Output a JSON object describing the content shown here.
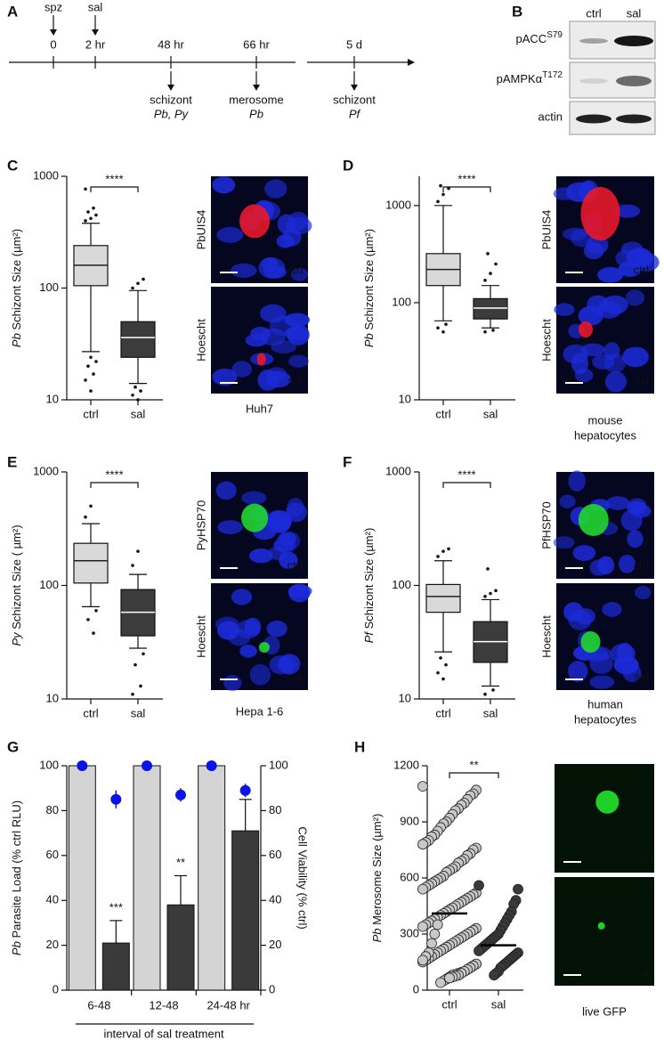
{
  "timeline": {
    "panel": "A",
    "start_events": [
      "spz",
      "sal"
    ],
    "ticks": [
      "0",
      "2 hr",
      "48 hr",
      "66 hr",
      "5 d"
    ],
    "events": [
      {
        "title": "schizont",
        "species": "Pb, Py"
      },
      {
        "title": "merosome",
        "species": "Pb"
      },
      {
        "title": "schizont",
        "species": "Pf"
      }
    ]
  },
  "blot": {
    "panel": "B",
    "columns": [
      "ctrl",
      "sal"
    ],
    "rows": [
      {
        "label": "pACC",
        "sup": "S79"
      },
      {
        "label": "pAMPKα",
        "sup": "T172"
      },
      {
        "label": "actin"
      }
    ]
  },
  "micrographs": [
    {
      "stain": "PbUIS4",
      "stain_color": "#e8182a",
      "counterstain": "Hoescht",
      "conditions": [
        "ctrl",
        "sal"
      ],
      "caption": [
        "Huh7"
      ]
    },
    {
      "stain": "PbUIS4",
      "stain_color": "#e8182a",
      "counterstain": "Hoescht",
      "conditions": [
        "ctrl",
        "sal"
      ],
      "caption": [
        "mouse",
        "hepatocytes"
      ]
    },
    {
      "stain": "PyHSP70",
      "stain_color": "#22d630",
      "counterstain": "Hoescht",
      "conditions": [
        "ctrl",
        "sal"
      ],
      "caption": [
        "Hepa 1-6"
      ]
    },
    {
      "stain": "PfHSP70",
      "stain_color": "#22d630",
      "counterstain": "Hoescht",
      "conditions": [
        "ctrl",
        "sal"
      ],
      "caption": [
        "human",
        "hepatocytes"
      ]
    },
    {
      "stain_color": "#22e62a",
      "conditions": [
        "ctrl",
        "sal"
      ],
      "caption": [
        "live GFP"
      ]
    }
  ],
  "chart_data": [
    {
      "type": "boxplot",
      "panel": "C",
      "ylabel_prefix": "Pb",
      "ylabel": " Schizont Size (µm²)",
      "yscale": "log",
      "ylim": [
        10,
        1000
      ],
      "yticks": [
        10,
        100,
        1000
      ],
      "categories": [
        "ctrl",
        "sal"
      ],
      "colors": [
        "#d9d9d9",
        "#3c3c3c"
      ],
      "median_colors": [
        "#222222",
        "#ffffff"
      ],
      "significance": "****",
      "boxes": [
        {
          "whisker_low": 27,
          "q1": 105,
          "median": 160,
          "q3": 240,
          "whisker_high": 380,
          "outliers": [
            400,
            420,
            450,
            480,
            520,
            770,
            24,
            22,
            20,
            17,
            15,
            12
          ]
        },
        {
          "whisker_low": 14,
          "q1": 24,
          "median": 36,
          "q3": 50,
          "whisker_high": 95,
          "outliers": [
            100,
            110,
            120,
            13,
            12,
            11,
            10
          ]
        }
      ]
    },
    {
      "type": "boxplot",
      "panel": "D",
      "ylabel_prefix": "Pb",
      "ylabel": " Schizont Size (µm²)",
      "yscale": "log",
      "ylim": [
        10,
        2000
      ],
      "yticks": [
        10,
        100,
        1000
      ],
      "categories": [
        "ctrl",
        "sal"
      ],
      "colors": [
        "#d9d9d9",
        "#3c3c3c"
      ],
      "median_colors": [
        "#222222",
        "#ffffff"
      ],
      "significance": "****",
      "boxes": [
        {
          "whisker_low": 65,
          "q1": 150,
          "median": 220,
          "q3": 320,
          "whisker_high": 1000,
          "outliers": [
            1100,
            1300,
            1500,
            1600,
            60,
            55,
            50
          ]
        },
        {
          "whisker_low": 55,
          "q1": 68,
          "median": 88,
          "q3": 110,
          "whisker_high": 150,
          "outliers": [
            170,
            200,
            250,
            320,
            52,
            50
          ]
        }
      ]
    },
    {
      "type": "boxplot",
      "panel": "E",
      "ylabel_prefix": "Py",
      "ylabel": " Schizont Size ( µm²)",
      "yscale": "log",
      "ylim": [
        10,
        1000
      ],
      "yticks": [
        10,
        100,
        1000
      ],
      "categories": [
        "ctrl",
        "sal"
      ],
      "colors": [
        "#d9d9d9",
        "#3c3c3c"
      ],
      "median_colors": [
        "#222222",
        "#ffffff"
      ],
      "significance": "****",
      "boxes": [
        {
          "whisker_low": 65,
          "q1": 105,
          "median": 165,
          "q3": 235,
          "whisker_high": 350,
          "outliers": [
            400,
            500,
            60,
            50,
            38
          ]
        },
        {
          "whisker_low": 28,
          "q1": 36,
          "median": 58,
          "q3": 92,
          "whisker_high": 125,
          "outliers": [
            150,
            200,
            25,
            20,
            13,
            11
          ]
        }
      ]
    },
    {
      "type": "boxplot",
      "panel": "F",
      "ylabel_prefix": "Pf",
      "ylabel": " Schizont Size (µm²)",
      "yscale": "log",
      "ylim": [
        10,
        1000
      ],
      "yticks": [
        10,
        100,
        1000
      ],
      "categories": [
        "ctrl",
        "sal"
      ],
      "colors": [
        "#d9d9d9",
        "#3c3c3c"
      ],
      "median_colors": [
        "#222222",
        "#ffffff"
      ],
      "significance": "****",
      "boxes": [
        {
          "whisker_low": 26,
          "q1": 58,
          "median": 80,
          "q3": 102,
          "whisker_high": 165,
          "outliers": [
            180,
            200,
            210,
            23,
            20,
            17,
            15
          ]
        },
        {
          "whisker_low": 13,
          "q1": 21,
          "median": 32,
          "q3": 48,
          "whisker_high": 75,
          "outliers": [
            80,
            85,
            90,
            140,
            12,
            11
          ]
        }
      ]
    },
    {
      "type": "bar",
      "panel": "G",
      "ylabel_prefix": "Pb",
      "ylabel": " Parasite Load (% ctrl RLU)",
      "y2label": "Cell Viability (% ctrl)",
      "y2_color": "#0000ee",
      "xlabel": "interval of sal treatment",
      "categories": [
        "6-48",
        "12-48",
        "24-48 hr"
      ],
      "ylim": [
        0,
        100
      ],
      "yticks": [
        0,
        20,
        40,
        60,
        80,
        100
      ],
      "y2lim": [
        0,
        100
      ],
      "y2ticks": [
        0,
        20,
        40,
        60,
        80,
        100
      ],
      "series": [
        {
          "color": "#d4d4d4",
          "values": [
            100,
            100,
            100
          ]
        },
        {
          "color": "#3a3a3a",
          "values": [
            21,
            38,
            71
          ],
          "errors": [
            10,
            13,
            14
          ],
          "significance": [
            "***",
            "**",
            null
          ]
        },
        {
          "color": "#0a14e6",
          "axis": "y2",
          "values": [
            100,
            100,
            100
          ]
        },
        {
          "color": "#0a14e6",
          "axis": "y2",
          "values": [
            85,
            87,
            89
          ],
          "errors": [
            4,
            3,
            3
          ]
        }
      ]
    },
    {
      "type": "strip",
      "panel": "H",
      "ylabel_prefix": "Pb",
      "ylabel": " Merosome Size (µm²)",
      "ylim": [
        0,
        1200
      ],
      "yticks": [
        0,
        300,
        600,
        900,
        1200
      ],
      "categories": [
        "ctrl",
        "sal"
      ],
      "significance": "**",
      "groups": [
        {
          "color": "#c8c8c8",
          "mean": 410,
          "values": [
            1090,
            1070,
            1050,
            1040,
            1020,
            1000,
            990,
            970,
            960,
            940,
            920,
            900,
            890,
            870,
            850,
            830,
            820,
            800,
            790,
            780,
            760,
            750,
            730,
            720,
            700,
            690,
            680,
            660,
            650,
            640,
            630,
            610,
            600,
            590,
            580,
            570,
            560,
            550,
            540,
            520,
            510,
            500,
            490,
            480,
            470,
            460,
            450,
            440,
            430,
            420,
            410,
            400,
            390,
            380,
            370,
            360,
            350,
            340,
            330,
            320,
            310,
            300,
            290,
            280,
            270,
            260,
            250,
            240,
            230,
            220,
            210,
            200,
            190,
            180,
            170,
            160,
            150,
            140,
            130,
            120,
            110,
            100,
            95,
            90,
            85,
            80,
            70,
            60,
            50,
            40,
            350,
            300,
            250,
            200,
            180,
            160,
            140,
            130,
            120,
            110,
            100,
            90,
            80,
            75,
            70,
            65
          ]
        },
        {
          "color": "#3a3a3a",
          "mean": 240,
          "values": [
            560,
            540,
            480,
            460,
            420,
            400,
            380,
            360,
            340,
            320,
            300,
            290,
            280,
            270,
            260,
            250,
            240,
            230,
            220,
            210,
            200,
            190,
            180,
            170,
            160,
            150,
            140,
            130,
            120,
            100,
            90,
            80
          ]
        }
      ]
    }
  ]
}
